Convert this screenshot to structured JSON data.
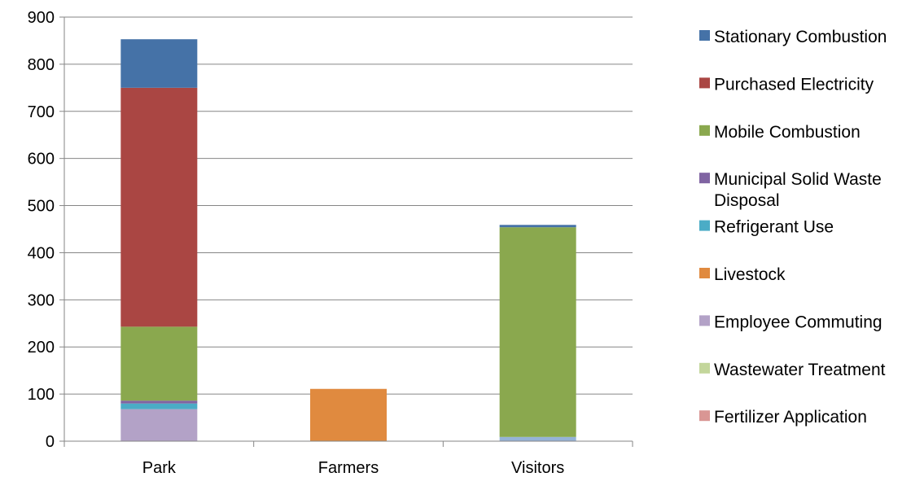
{
  "chart_data": {
    "type": "bar",
    "stacked": true,
    "title": "",
    "xlabel": "",
    "ylabel": "",
    "ylim": [
      0,
      900
    ],
    "yticks": [
      "0",
      "100",
      "200",
      "300",
      "400",
      "500",
      "600",
      "700",
      "800",
      "900"
    ],
    "grid": true,
    "legend_position": "right",
    "categories": [
      "Park",
      "Farmers",
      "Visitors"
    ],
    "series": [
      {
        "name": "Fertilizer Application",
        "color": "#d99694",
        "values": [
          0,
          0,
          0
        ]
      },
      {
        "name": "Wastewater Treatment",
        "color": "#c3d69b",
        "values": [
          0,
          0,
          0
        ]
      },
      {
        "name": "Employee Commuting",
        "color": "#b3a2c7",
        "values": [
          68,
          0,
          0
        ]
      },
      {
        "name": "Refrigerant Use",
        "color": "#4bacc6",
        "values": [
          12,
          0,
          0
        ]
      },
      {
        "name": "Livestock",
        "color": "#e08a3f",
        "values": [
          0,
          111,
          0
        ]
      },
      {
        "name": "Municipal Solid Waste Disposal",
        "color": "#8064a2",
        "values": [
          6,
          0,
          0
        ]
      },
      {
        "name": "Mobile Combustion",
        "color": "#8aa84e",
        "values": [
          157,
          0,
          445
        ]
      },
      {
        "name": "Purchased Electricity",
        "color": "#aa4643",
        "values": [
          507,
          0,
          0
        ]
      },
      {
        "name": "Stationary Combustion",
        "color": "#4572a7",
        "values": [
          103,
          0,
          5
        ]
      }
    ],
    "extra_segments": [
      {
        "category": "Visitors",
        "color": "#95b3d7",
        "value": 9
      }
    ],
    "legend": [
      {
        "lines": [
          "Stationary Combustion"
        ],
        "color": "#4572a7"
      },
      {
        "lines": [
          "Purchased Electricity"
        ],
        "color": "#aa4643"
      },
      {
        "lines": [
          "Mobile Combustion"
        ],
        "color": "#8aa84e"
      },
      {
        "lines": [
          "Municipal Solid Waste",
          "Disposal"
        ],
        "color": "#8064a2"
      },
      {
        "lines": [
          "Refrigerant Use"
        ],
        "color": "#4bacc6"
      },
      {
        "lines": [
          "Livestock"
        ],
        "color": "#e08a3f"
      },
      {
        "lines": [
          "Employee Commuting"
        ],
        "color": "#b3a2c7"
      },
      {
        "lines": [
          "Wastewater Treatment"
        ],
        "color": "#c3d69b"
      },
      {
        "lines": [
          "Fertilizer Application"
        ],
        "color": "#d99694"
      }
    ]
  }
}
